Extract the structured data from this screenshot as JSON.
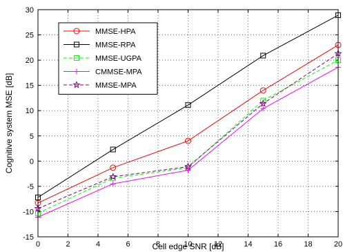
{
  "chart_data": {
    "type": "line",
    "xlabel": "Cell edge SNR [dB]",
    "ylabel": "Cognitive system MSE [dB]",
    "xlim": [
      0,
      20
    ],
    "ylim": [
      -15,
      30
    ],
    "xticks": [
      0,
      2,
      4,
      6,
      8,
      10,
      12,
      14,
      16,
      18,
      20
    ],
    "yticks": [
      -15,
      -10,
      -5,
      0,
      5,
      10,
      15,
      20,
      25,
      30
    ],
    "grid": true,
    "legend_position": "top-left",
    "x": [
      0,
      5,
      10,
      15,
      20
    ],
    "series": [
      {
        "name": "MMSE-HPA",
        "values": [
          -8.3,
          -1.3,
          4.0,
          14.0,
          23.0
        ],
        "color": "#ff0000",
        "line_style": "solid",
        "marker": "circle"
      },
      {
        "name": "MMSE-RPA",
        "values": [
          -7.2,
          2.3,
          11.1,
          20.9,
          28.9
        ],
        "color": "#000000",
        "line_style": "solid",
        "marker": "square"
      },
      {
        "name": "MMSE-UGPA",
        "values": [
          -10.3,
          -3.4,
          -1.3,
          12.0,
          20.0
        ],
        "color": "#00ff00",
        "line_style": "dashed",
        "marker": "square"
      },
      {
        "name": "CMMSE-MPA",
        "values": [
          -11.1,
          -4.5,
          -1.8,
          10.4,
          18.6
        ],
        "color": "#ff00ff",
        "line_style": "solid",
        "marker": "plus"
      },
      {
        "name": "MMSE-MPA",
        "values": [
          -9.4,
          -3.1,
          -1.1,
          11.4,
          21.3
        ],
        "color": "#800080",
        "line_style": "dashed",
        "marker": "star"
      }
    ]
  }
}
